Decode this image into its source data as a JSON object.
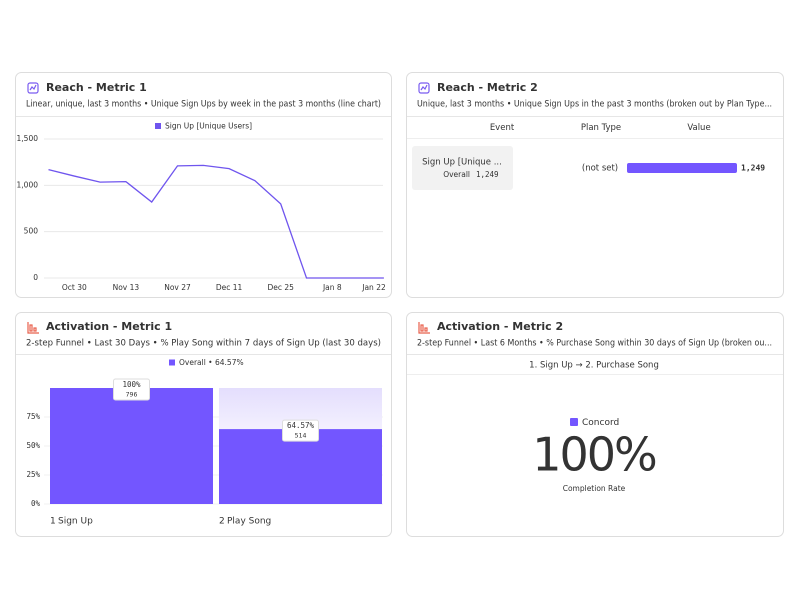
{
  "panels": [
    {
      "title": "Reach - Metric 1",
      "subtitle": "Linear, unique, last 3 months • Unique Sign Ups by week in the past 3 months (line chart)",
      "chart": {
        "type": "line",
        "x": [
          null,
          "Oct 30",
          null,
          "Nov 13",
          null,
          "Nov 27",
          null,
          "Dec 11",
          null,
          "Dec 25",
          null,
          "Jan 8",
          null,
          "Jan 22"
        ],
        "series": [
          {
            "name": "Sign Up [Unique Users]",
            "color": "#6f55ee",
            "values": [
              1170,
              1100,
              1035,
              1040,
              820,
              1210,
              1215,
              1180,
              1050,
              800,
              0,
              0,
              0,
              0
            ]
          }
        ],
        "ylim": [
          0,
          1500
        ],
        "yticks": [
          0,
          500,
          {
            "value": 1000,
            "label": "1,000"
          },
          {
            "value": 1500,
            "label": "1,500"
          }
        ],
        "grid": true
      }
    },
    {
      "title": "Reach - Metric 2",
      "subtitle": "Unique, last 3 months • Unique Sign Ups in the past 3 months (broken out by Plan Type...",
      "table": {
        "headers": [
          "Event",
          "Plan Type",
          "Value"
        ],
        "rows": [
          {
            "event": "Sign Up [Unique ...",
            "segment": "Overall",
            "plan_type": "(not set)",
            "value": 1249,
            "value_label": "1,249",
            "color": "#7356ff"
          }
        ]
      }
    },
    {
      "title": "Activation - Metric 1",
      "subtitle": "2-step Funnel • Last 30 Days • % Play Song within 7 days of Sign Up (last 30 days)",
      "chart": {
        "type": "funnel",
        "legend": "Overall • 64.57%",
        "color": "#7356ff",
        "steps": [
          "1",
          "2"
        ],
        "categories": [
          "Sign Up",
          "Play Song"
        ],
        "values": [
          100,
          64.57
        ],
        "value_labels": [
          "100%",
          "64.57%"
        ],
        "counts": [
          796,
          514
        ],
        "ylim": [
          0,
          100
        ],
        "yticks": [
          {
            "value": 0,
            "label": "0%"
          },
          {
            "value": 25,
            "label": "25%"
          },
          {
            "value": 50,
            "label": "50%"
          },
          {
            "value": 75,
            "label": "75%"
          }
        ]
      }
    },
    {
      "title": "Activation - Metric 2",
      "subtitle": "2-step Funnel • Last 6 Months • % Purchase Song within 30 days of Sign Up (broken ou...",
      "header": "1. Sign Up → 2. Purchase Song",
      "legend": "Concord",
      "legend_color": "#7356ff",
      "value": 100,
      "value_label": "100%",
      "caption": "Completion Rate"
    }
  ]
}
